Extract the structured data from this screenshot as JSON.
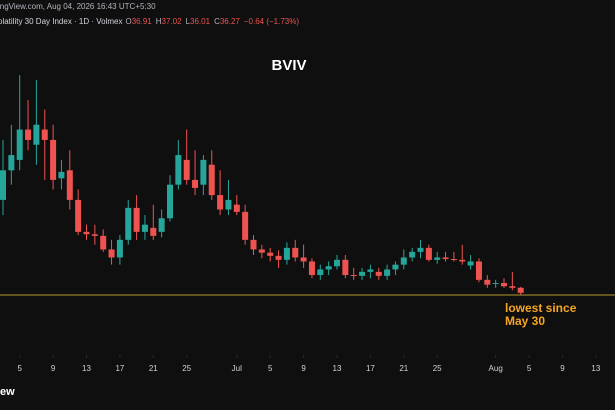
{
  "header": {
    "source": "ingView.com, Aug 04, 2026 16:43 UTC+5:30",
    "symbol": "olatility 30 Day Index · 1D · Volmex",
    "ohlc_keys": [
      "O",
      "H",
      "L",
      "C"
    ],
    "change": "−0.64 (−1.73%)"
  },
  "logo": "iew",
  "chart_data": {
    "type": "candlestick",
    "title": "BVIV",
    "categories": [
      "Jun 3",
      "Jun 4",
      "Jun 5",
      "Jun 6",
      "Jun 7",
      "Jun 8",
      "Jun 9",
      "Jun 10",
      "Jun 11",
      "Jun 12",
      "Jun 13",
      "Jun 14",
      "Jun 15",
      "Jun 16",
      "Jun 17",
      "Jun 18",
      "Jun 19",
      "Jun 20",
      "Jun 21",
      "Jun 22",
      "Jun 23",
      "Jun 24",
      "Jun 25",
      "Jun 26",
      "Jun 27",
      "Jun 28",
      "Jun 29",
      "Jun 30",
      "Jul 1",
      "Jul 2",
      "Jul 3",
      "Jul 4",
      "Jul 5",
      "Jul 6",
      "Jul 7",
      "Jul 8",
      "Jul 9",
      "Jul 10",
      "Jul 11",
      "Jul 12",
      "Jul 13",
      "Jul 14",
      "Jul 15",
      "Jul 16",
      "Jul 17",
      "Jul 18",
      "Jul 19",
      "Jul 20",
      "Jul 21",
      "Jul 22",
      "Jul 23",
      "Jul 24",
      "Jul 25",
      "Jul 26",
      "Jul 27",
      "Jul 28",
      "Jul 29",
      "Jul 30",
      "Jul 31",
      "Aug 1",
      "Aug 2",
      "Aug 3",
      "Aug 4"
    ],
    "open": [
      47.9,
      51.6,
      52.9,
      56.7,
      54.8,
      56.7,
      55.4,
      50.6,
      51.6,
      47.9,
      43.9,
      43.6,
      43.4,
      41.7,
      40.7,
      42.9,
      46.9,
      43.9,
      44.4,
      43.9,
      45.6,
      49.8,
      52.9,
      50.4,
      49.8,
      52.3,
      48.5,
      46.7,
      47.3,
      46.4,
      42.9,
      41.7,
      41.3,
      40.9,
      40.4,
      41.9,
      40.7,
      40.2,
      38.5,
      39.2,
      39.6,
      40.4,
      38.5,
      38.4,
      38.9,
      38.9,
      38.4,
      39.2,
      39.8,
      40.7,
      41.4,
      41.9,
      40.4,
      40.7,
      40.5,
      40.4,
      39.7,
      40.2,
      37.9,
      37.4,
      37.5,
      37.1,
      36.91
    ],
    "high": [
      55.4,
      57.3,
      63.5,
      60.4,
      62.9,
      59.2,
      57.3,
      52.9,
      54.1,
      49.2,
      44.8,
      44.8,
      44.2,
      42.9,
      43.5,
      47.9,
      48.5,
      46.0,
      47.3,
      46.7,
      51.0,
      55.4,
      56.7,
      54.1,
      53.5,
      54.1,
      51.6,
      50.4,
      48.5,
      47.3,
      43.5,
      42.3,
      41.9,
      41.6,
      42.6,
      42.9,
      42.3,
      40.6,
      39.8,
      40.2,
      41.0,
      41.0,
      39.4,
      39.4,
      39.8,
      39.4,
      39.8,
      40.2,
      41.7,
      41.9,
      42.9,
      42.3,
      41.4,
      41.4,
      41.4,
      42.3,
      41.0,
      40.6,
      38.5,
      37.9,
      38.1,
      38.9,
      37.02
    ],
    "low": [
      46.0,
      49.8,
      51.6,
      54.1,
      52.3,
      50.4,
      49.2,
      49.2,
      46.7,
      43.5,
      42.9,
      42.3,
      41.4,
      39.8,
      39.8,
      42.3,
      42.9,
      42.9,
      42.9,
      43.2,
      45.2,
      49.2,
      49.8,
      48.5,
      48.5,
      47.9,
      46.0,
      46.0,
      46.0,
      42.3,
      41.0,
      40.6,
      40.2,
      39.4,
      39.8,
      40.2,
      39.4,
      38.1,
      37.9,
      38.5,
      39.2,
      38.1,
      37.9,
      37.9,
      38.1,
      37.9,
      37.9,
      38.5,
      39.2,
      40.2,
      40.6,
      40.2,
      39.9,
      40.2,
      40.2,
      39.8,
      39.2,
      37.6,
      36.9,
      36.9,
      36.9,
      36.6,
      36.01
    ],
    "close": [
      51.6,
      53.5,
      56.7,
      55.4,
      57.3,
      55.4,
      50.4,
      51.4,
      47.9,
      43.9,
      43.6,
      43.4,
      41.7,
      40.7,
      42.9,
      46.9,
      43.9,
      44.8,
      43.4,
      45.6,
      49.8,
      53.5,
      50.4,
      49.4,
      52.9,
      48.5,
      46.7,
      47.9,
      46.4,
      42.9,
      41.7,
      41.3,
      40.9,
      40.4,
      41.9,
      40.7,
      40.2,
      38.5,
      39.2,
      39.6,
      40.4,
      38.5,
      38.4,
      38.9,
      39.2,
      38.4,
      39.2,
      39.8,
      40.7,
      41.4,
      41.9,
      40.4,
      40.7,
      40.5,
      40.4,
      40.2,
      40.2,
      37.9,
      37.3,
      37.5,
      37.1,
      36.9,
      36.27
    ],
    "up_color": "#26a69a",
    "down_color": "#ef5350",
    "ylim": [
      28.5,
      72.9
    ],
    "hline": {
      "value": 36.01,
      "color": "#b59a2e"
    },
    "annotation": {
      "lines": [
        "lowest since",
        "May 30"
      ],
      "color": "#f5a623"
    },
    "xticks": [
      {
        "value": "Jun 5",
        "label": "5"
      },
      {
        "value": "Jun 9",
        "label": "9"
      },
      {
        "value": "Jun 13",
        "label": "13"
      },
      {
        "value": "Jun 17",
        "label": "17"
      },
      {
        "value": "Jun 21",
        "label": "21"
      },
      {
        "value": "Jun 25",
        "label": "25"
      },
      {
        "value": "Jul 1",
        "label": "Jul"
      },
      {
        "value": "Jul 5",
        "label": "5"
      },
      {
        "value": "Jul 9",
        "label": "9"
      },
      {
        "value": "Jul 13",
        "label": "13"
      },
      {
        "value": "Jul 17",
        "label": "17"
      },
      {
        "value": "Jul 21",
        "label": "21"
      },
      {
        "value": "Jul 25",
        "label": "25"
      },
      {
        "value": "Aug 1",
        "label": "Aug"
      },
      {
        "value": "Aug 5",
        "label": "5"
      },
      {
        "value": "Aug 9",
        "label": "9"
      },
      {
        "value": "Aug 13",
        "label": "13"
      }
    ]
  }
}
